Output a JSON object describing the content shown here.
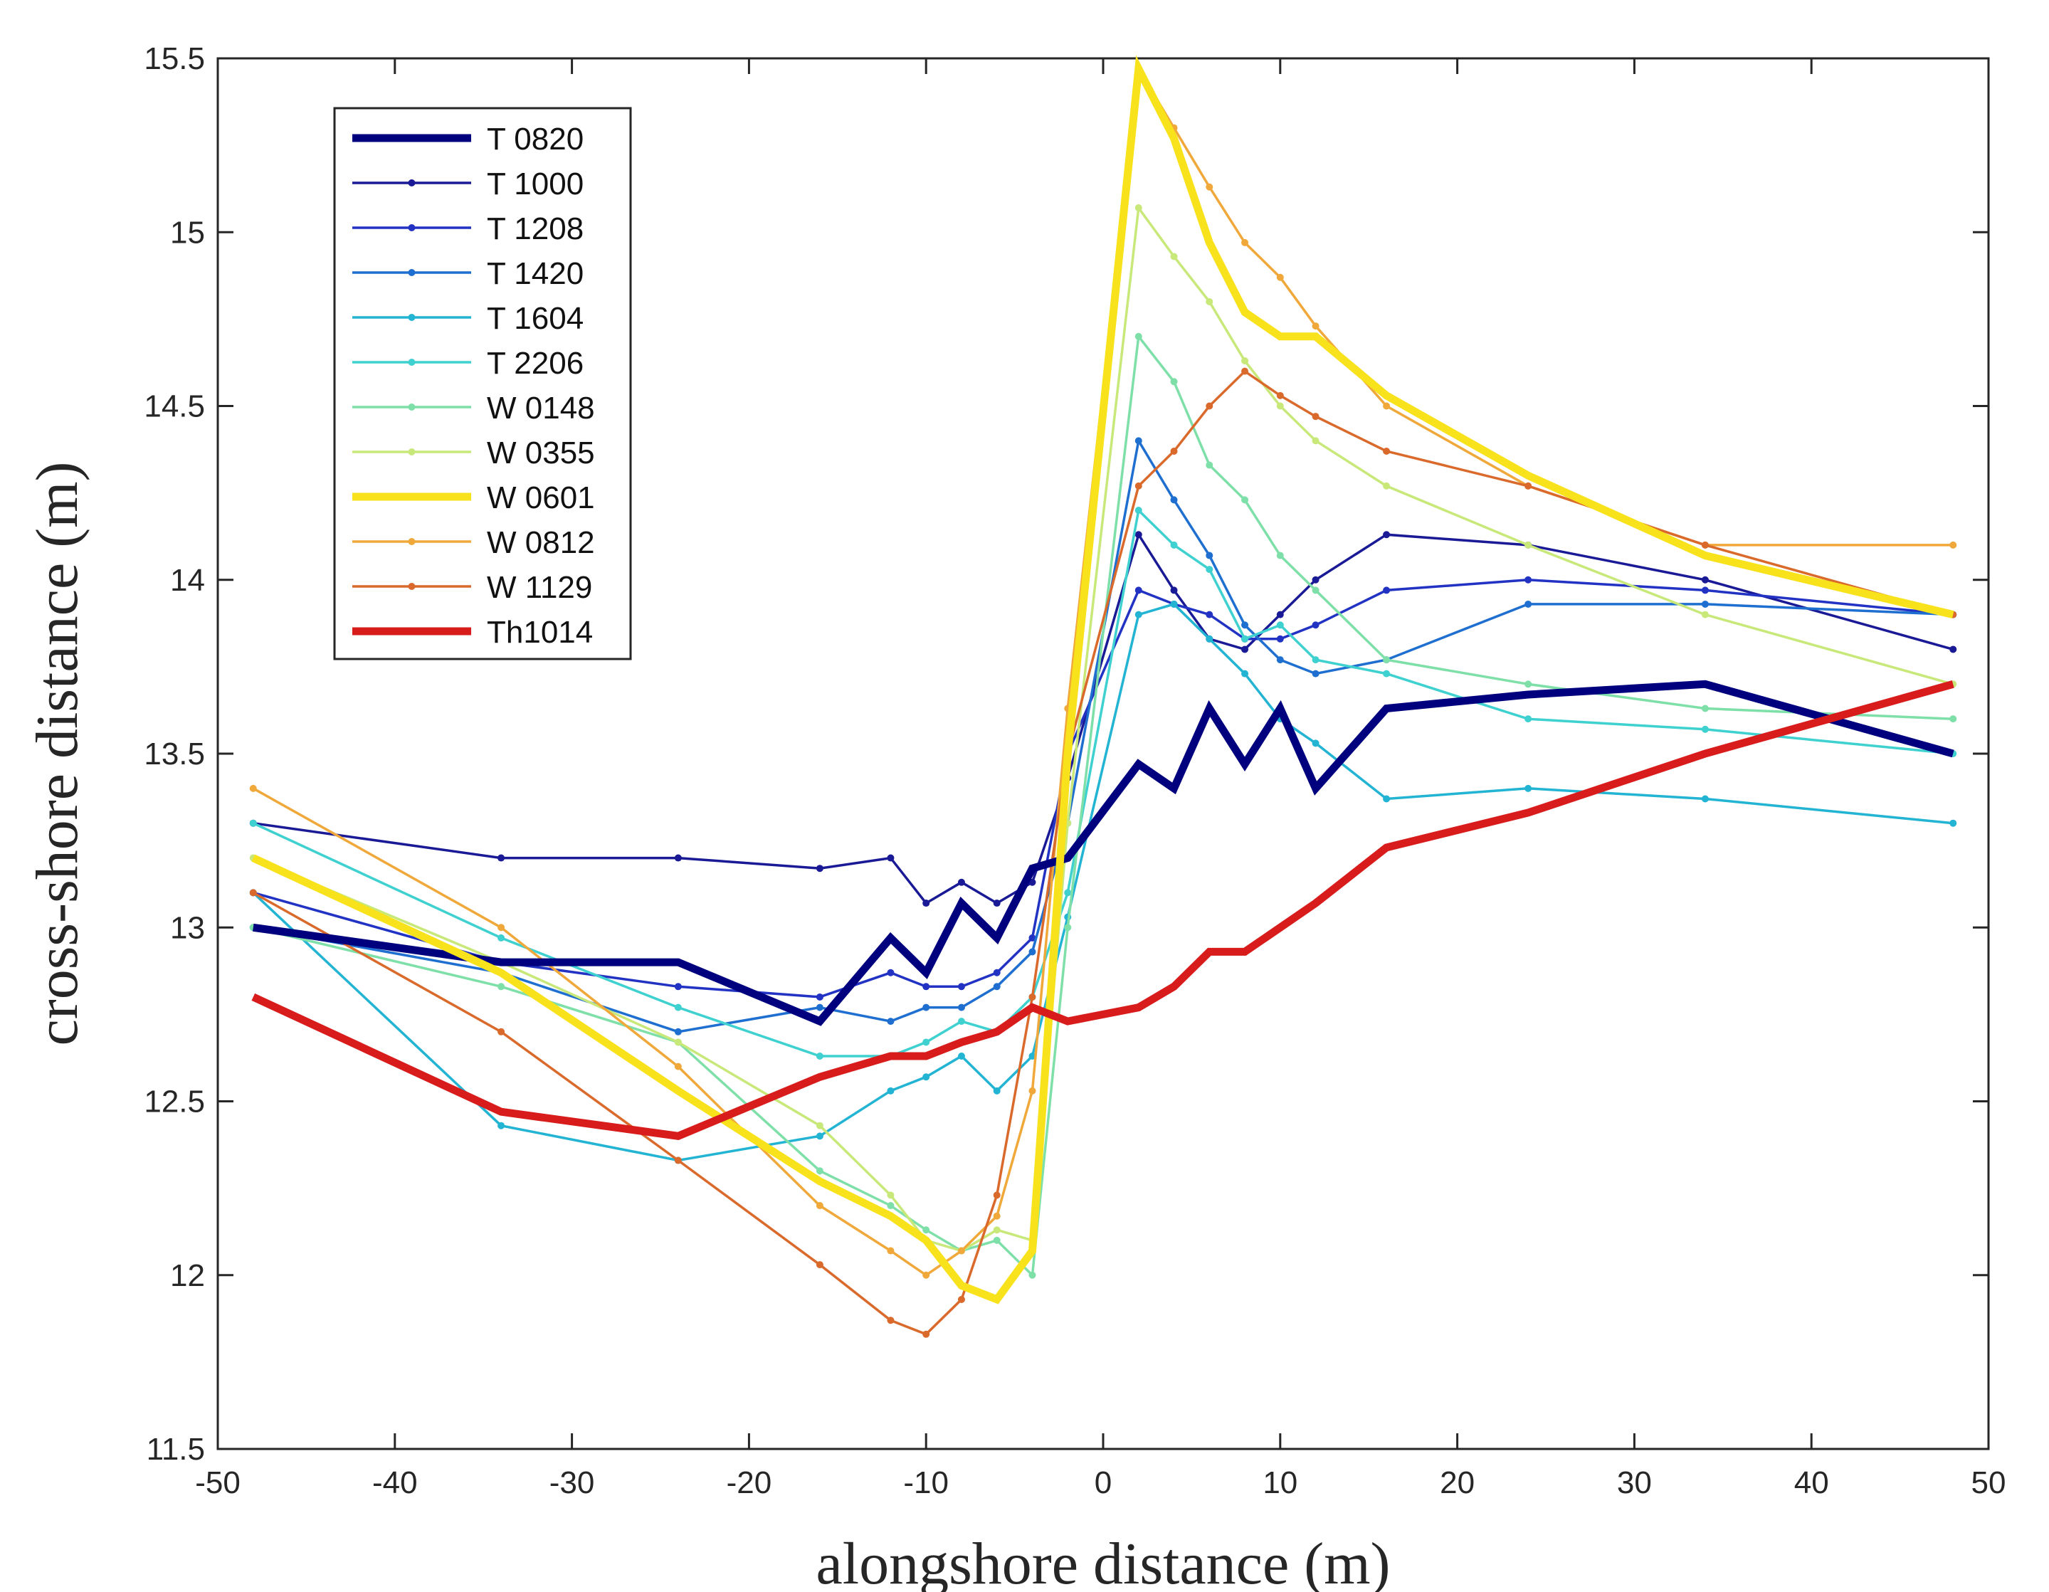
{
  "chart_data": {
    "type": "line",
    "title": "",
    "xlabel": "alongshore distance (m)",
    "ylabel": "cross-shore distance (m)",
    "xlim": [
      -50,
      50
    ],
    "ylim": [
      11.5,
      15.5
    ],
    "xticks": [
      -50,
      -40,
      -30,
      -20,
      -10,
      0,
      10,
      20,
      30,
      40,
      50
    ],
    "yticks": [
      11.5,
      12,
      12.5,
      13,
      13.5,
      14,
      14.5,
      15,
      15.5
    ],
    "grid": false,
    "legend_position": "top-left",
    "series": [
      {
        "name": "T 0820",
        "color": "#00007f",
        "width": "thick",
        "markers": false,
        "x": [
          -48,
          -34,
          -24,
          -16,
          -12,
          -10,
          -8,
          -6,
          -4,
          -2,
          2,
          4,
          6,
          8,
          10,
          12,
          16,
          24,
          34,
          48
        ],
        "y": [
          13.0,
          12.9,
          12.9,
          12.73,
          12.97,
          12.87,
          13.07,
          12.97,
          13.17,
          13.2,
          13.47,
          13.4,
          13.63,
          13.47,
          13.63,
          13.4,
          13.63,
          13.67,
          13.7,
          13.5
        ]
      },
      {
        "name": "T 1000",
        "color": "#1a1a96",
        "width": "thin",
        "markers": true,
        "x": [
          -48,
          -34,
          -24,
          -16,
          -12,
          -10,
          -8,
          -6,
          -4,
          -2,
          2,
          4,
          6,
          8,
          10,
          12,
          16,
          24,
          34,
          48
        ],
        "y": [
          13.3,
          13.2,
          13.2,
          13.17,
          13.2,
          13.07,
          13.13,
          13.07,
          13.13,
          13.43,
          14.13,
          13.97,
          13.83,
          13.8,
          13.9,
          14.0,
          14.13,
          14.1,
          14.0,
          13.8
        ]
      },
      {
        "name": "T 1208",
        "color": "#2233c4",
        "width": "thin",
        "markers": true,
        "x": [
          -48,
          -34,
          -24,
          -16,
          -12,
          -10,
          -8,
          -6,
          -4,
          -2,
          2,
          4,
          6,
          8,
          10,
          12,
          16,
          24,
          34,
          48
        ],
        "y": [
          13.1,
          12.9,
          12.83,
          12.8,
          12.87,
          12.83,
          12.83,
          12.87,
          12.97,
          13.5,
          13.97,
          13.93,
          13.9,
          13.83,
          13.83,
          13.87,
          13.97,
          14.0,
          13.97,
          13.9
        ]
      },
      {
        "name": "T 1420",
        "color": "#1f6fd0",
        "width": "thin",
        "markers": true,
        "x": [
          -48,
          -34,
          -24,
          -16,
          -12,
          -10,
          -8,
          -6,
          -4,
          -2,
          2,
          4,
          6,
          8,
          10,
          12,
          16,
          24,
          34,
          48
        ],
        "y": [
          13.0,
          12.87,
          12.7,
          12.77,
          12.73,
          12.77,
          12.77,
          12.83,
          12.93,
          13.3,
          14.4,
          14.23,
          14.07,
          13.87,
          13.77,
          13.73,
          13.77,
          13.93,
          13.93,
          13.9
        ]
      },
      {
        "name": "T 1604",
        "color": "#22b4d2",
        "width": "thin",
        "markers": true,
        "x": [
          -48,
          -34,
          -24,
          -16,
          -12,
          -10,
          -8,
          -6,
          -4,
          -2,
          2,
          4,
          6,
          8,
          10,
          12,
          16,
          24,
          34,
          48
        ],
        "y": [
          13.1,
          12.43,
          12.33,
          12.4,
          12.53,
          12.57,
          12.63,
          12.53,
          12.63,
          13.03,
          13.9,
          13.93,
          13.83,
          13.73,
          13.6,
          13.53,
          13.37,
          13.4,
          13.37,
          13.3
        ]
      },
      {
        "name": "T 2206",
        "color": "#3fd0d0",
        "width": "thin",
        "markers": true,
        "x": [
          -48,
          -34,
          -24,
          -16,
          -12,
          -10,
          -8,
          -6,
          -4,
          -2,
          2,
          4,
          6,
          8,
          10,
          12,
          16,
          24,
          34,
          48
        ],
        "y": [
          13.3,
          12.97,
          12.77,
          12.63,
          12.63,
          12.67,
          12.73,
          12.7,
          12.8,
          13.1,
          14.2,
          14.1,
          14.03,
          13.83,
          13.87,
          13.77,
          13.73,
          13.6,
          13.57,
          13.5
        ]
      },
      {
        "name": "W 0148",
        "color": "#7ee0a8",
        "width": "thin",
        "markers": true,
        "x": [
          -48,
          -34,
          -24,
          -16,
          -12,
          -10,
          -8,
          -6,
          -4,
          -2,
          2,
          4,
          6,
          8,
          10,
          12,
          16,
          24,
          34,
          48
        ],
        "y": [
          13.0,
          12.83,
          12.67,
          12.3,
          12.2,
          12.13,
          12.07,
          12.1,
          12.0,
          13.0,
          14.7,
          14.57,
          14.33,
          14.23,
          14.07,
          13.97,
          13.77,
          13.7,
          13.63,
          13.6
        ]
      },
      {
        "name": "W 0355",
        "color": "#c8e87a",
        "width": "thin",
        "markers": true,
        "x": [
          -48,
          -34,
          -24,
          -16,
          -12,
          -10,
          -8,
          -6,
          -4,
          -2,
          2,
          4,
          6,
          8,
          10,
          12,
          16,
          24,
          34,
          48
        ],
        "y": [
          13.2,
          12.9,
          12.67,
          12.43,
          12.23,
          12.1,
          12.07,
          12.13,
          12.1,
          13.3,
          15.07,
          14.93,
          14.8,
          14.63,
          14.5,
          14.4,
          14.27,
          14.1,
          13.9,
          13.7
        ]
      },
      {
        "name": "W 0601",
        "color": "#f7e21b",
        "width": "thick",
        "markers": false,
        "x": [
          -48,
          -34,
          -24,
          -16,
          -12,
          -10,
          -8,
          -6,
          -4,
          -2,
          2,
          4,
          6,
          8,
          10,
          12,
          16,
          24,
          34,
          48
        ],
        "y": [
          13.2,
          12.87,
          12.53,
          12.27,
          12.17,
          12.1,
          11.97,
          11.93,
          12.07,
          13.5,
          15.47,
          15.27,
          14.97,
          14.77,
          14.7,
          14.7,
          14.53,
          14.3,
          14.07,
          13.9
        ]
      },
      {
        "name": "W 0812",
        "color": "#f0a83a",
        "width": "thin",
        "markers": true,
        "x": [
          -48,
          -34,
          -24,
          -16,
          -12,
          -10,
          -8,
          -6,
          -4,
          -2,
          2,
          4,
          6,
          8,
          10,
          12,
          16,
          24,
          34,
          48
        ],
        "y": [
          13.4,
          13.0,
          12.6,
          12.2,
          12.07,
          12.0,
          12.07,
          12.17,
          12.53,
          13.63,
          15.47,
          15.3,
          15.13,
          14.97,
          14.87,
          14.73,
          14.5,
          14.27,
          14.1,
          14.1
        ]
      },
      {
        "name": "W 1129",
        "color": "#d96a2c",
        "width": "thin",
        "markers": true,
        "x": [
          -48,
          -34,
          -24,
          -16,
          -12,
          -10,
          -8,
          -6,
          -4,
          -2,
          2,
          4,
          6,
          8,
          10,
          12,
          16,
          24,
          34,
          48
        ],
        "y": [
          13.1,
          12.7,
          12.33,
          12.03,
          11.87,
          11.83,
          11.93,
          12.23,
          12.8,
          13.5,
          14.27,
          14.37,
          14.5,
          14.6,
          14.53,
          14.47,
          14.37,
          14.27,
          14.1,
          13.9
        ]
      },
      {
        "name": "Th1014",
        "color": "#d81c1c",
        "width": "thick",
        "markers": false,
        "x": [
          -48,
          -34,
          -24,
          -16,
          -12,
          -10,
          -8,
          -6,
          -4,
          -2,
          2,
          4,
          6,
          8,
          10,
          12,
          16,
          24,
          34,
          48
        ],
        "y": [
          12.8,
          12.47,
          12.4,
          12.57,
          12.63,
          12.63,
          12.67,
          12.7,
          12.77,
          12.73,
          12.77,
          12.83,
          12.93,
          12.93,
          13.0,
          13.07,
          13.23,
          13.33,
          13.5,
          13.7
        ]
      }
    ]
  }
}
